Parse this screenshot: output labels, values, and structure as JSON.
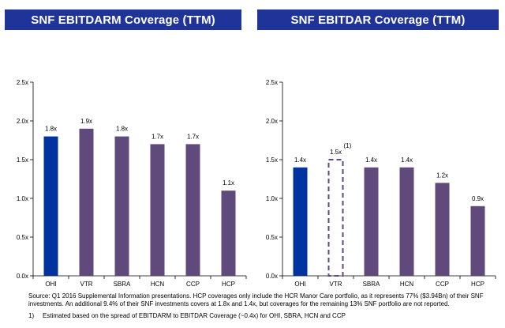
{
  "chart_data": [
    {
      "type": "bar",
      "title": "SNF EBITDARM Coverage (TTM)",
      "categories": [
        "OHI",
        "VTR",
        "SBRA",
        "HCN",
        "CCP",
        "HCP"
      ],
      "values": [
        1.8,
        1.9,
        1.8,
        1.7,
        1.7,
        1.1
      ],
      "data_labels": [
        "1.8x",
        "1.9x",
        "1.8x",
        "1.7x",
        "1.7x",
        "1.1x"
      ],
      "bar_colors": [
        "#0033a0",
        "#604a7b",
        "#604a7b",
        "#604a7b",
        "#604a7b",
        "#604a7b"
      ],
      "ylim": [
        0,
        2.5
      ],
      "yticks": [
        "0.0x",
        "0.5x",
        "1.0x",
        "1.5x",
        "2.0x",
        "2.5x"
      ],
      "xlabel": "",
      "ylabel": "",
      "grid": false
    },
    {
      "type": "bar",
      "title": "SNF EBITDAR Coverage (TTM)",
      "categories": [
        "OHI",
        "VTR",
        "SBRA",
        "HCN",
        "CCP",
        "HCP"
      ],
      "values": [
        1.4,
        1.5,
        1.4,
        1.4,
        1.2,
        0.9
      ],
      "data_labels": [
        "1.4x",
        "1.5x",
        "1.4x",
        "1.4x",
        "1.2x",
        "0.9x"
      ],
      "label_superscripts": [
        "",
        "(1)",
        "",
        "",
        "",
        ""
      ],
      "bar_colors": [
        "#0033a0",
        "#604a7b",
        "#604a7b",
        "#604a7b",
        "#604a7b",
        "#604a7b"
      ],
      "bar_styles": [
        "solid",
        "dashed-outline",
        "solid",
        "solid",
        "solid",
        "solid"
      ],
      "ylim": [
        0,
        2.5
      ],
      "yticks": [
        "0.0x",
        "0.5x",
        "1.0x",
        "1.5x",
        "2.0x",
        "2.5x"
      ],
      "xlabel": "",
      "ylabel": "",
      "grid": false
    }
  ],
  "notes": {
    "source": "Source: Q1 2016 Supplemental Information presentations.  HCP coverages only include the HCR Manor Care portfolio, as it represents 77% ($3.94Bn) of their SNF investments. An additional 9.4% of their SNF investments covers at 1.8x and 1.4x, but coverages for the remaining 13% SNF portfolio are not reported.",
    "footnote_number": "1)",
    "footnote_text": "Estimated based on the spread of EBITDARM to EBITDAR Coverage (~0.4x) for OHI, SBRA, HCN and CCP"
  }
}
